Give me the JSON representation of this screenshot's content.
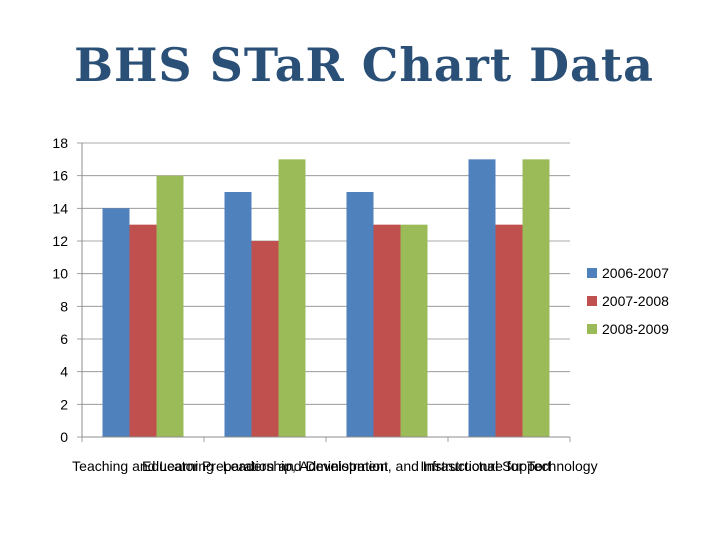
{
  "slide": {
    "title": "BHS STaR Chart Data"
  },
  "chart_data": {
    "type": "bar",
    "categories": [
      "Teaching and Learning",
      "Educator Preparation and Development",
      "Leadership, Administration, and Instructional Support",
      "Infrastructure for Technology"
    ],
    "series": [
      {
        "name": "2006-2007",
        "color": "#4f81bd",
        "values": [
          14,
          15,
          15,
          17
        ]
      },
      {
        "name": "2007-2008",
        "color": "#c0504d",
        "values": [
          13,
          12,
          13,
          13
        ]
      },
      {
        "name": "2008-2009",
        "color": "#9bbb59",
        "values": [
          16,
          17,
          13,
          17
        ]
      }
    ],
    "y_ticks": [
      "0",
      "2",
      "4",
      "6",
      "8",
      "10",
      "12",
      "14",
      "16",
      "18"
    ],
    "ylim": [
      0,
      18
    ],
    "grid": true,
    "legend": "right",
    "title": "",
    "xlabel": "",
    "ylabel": ""
  }
}
